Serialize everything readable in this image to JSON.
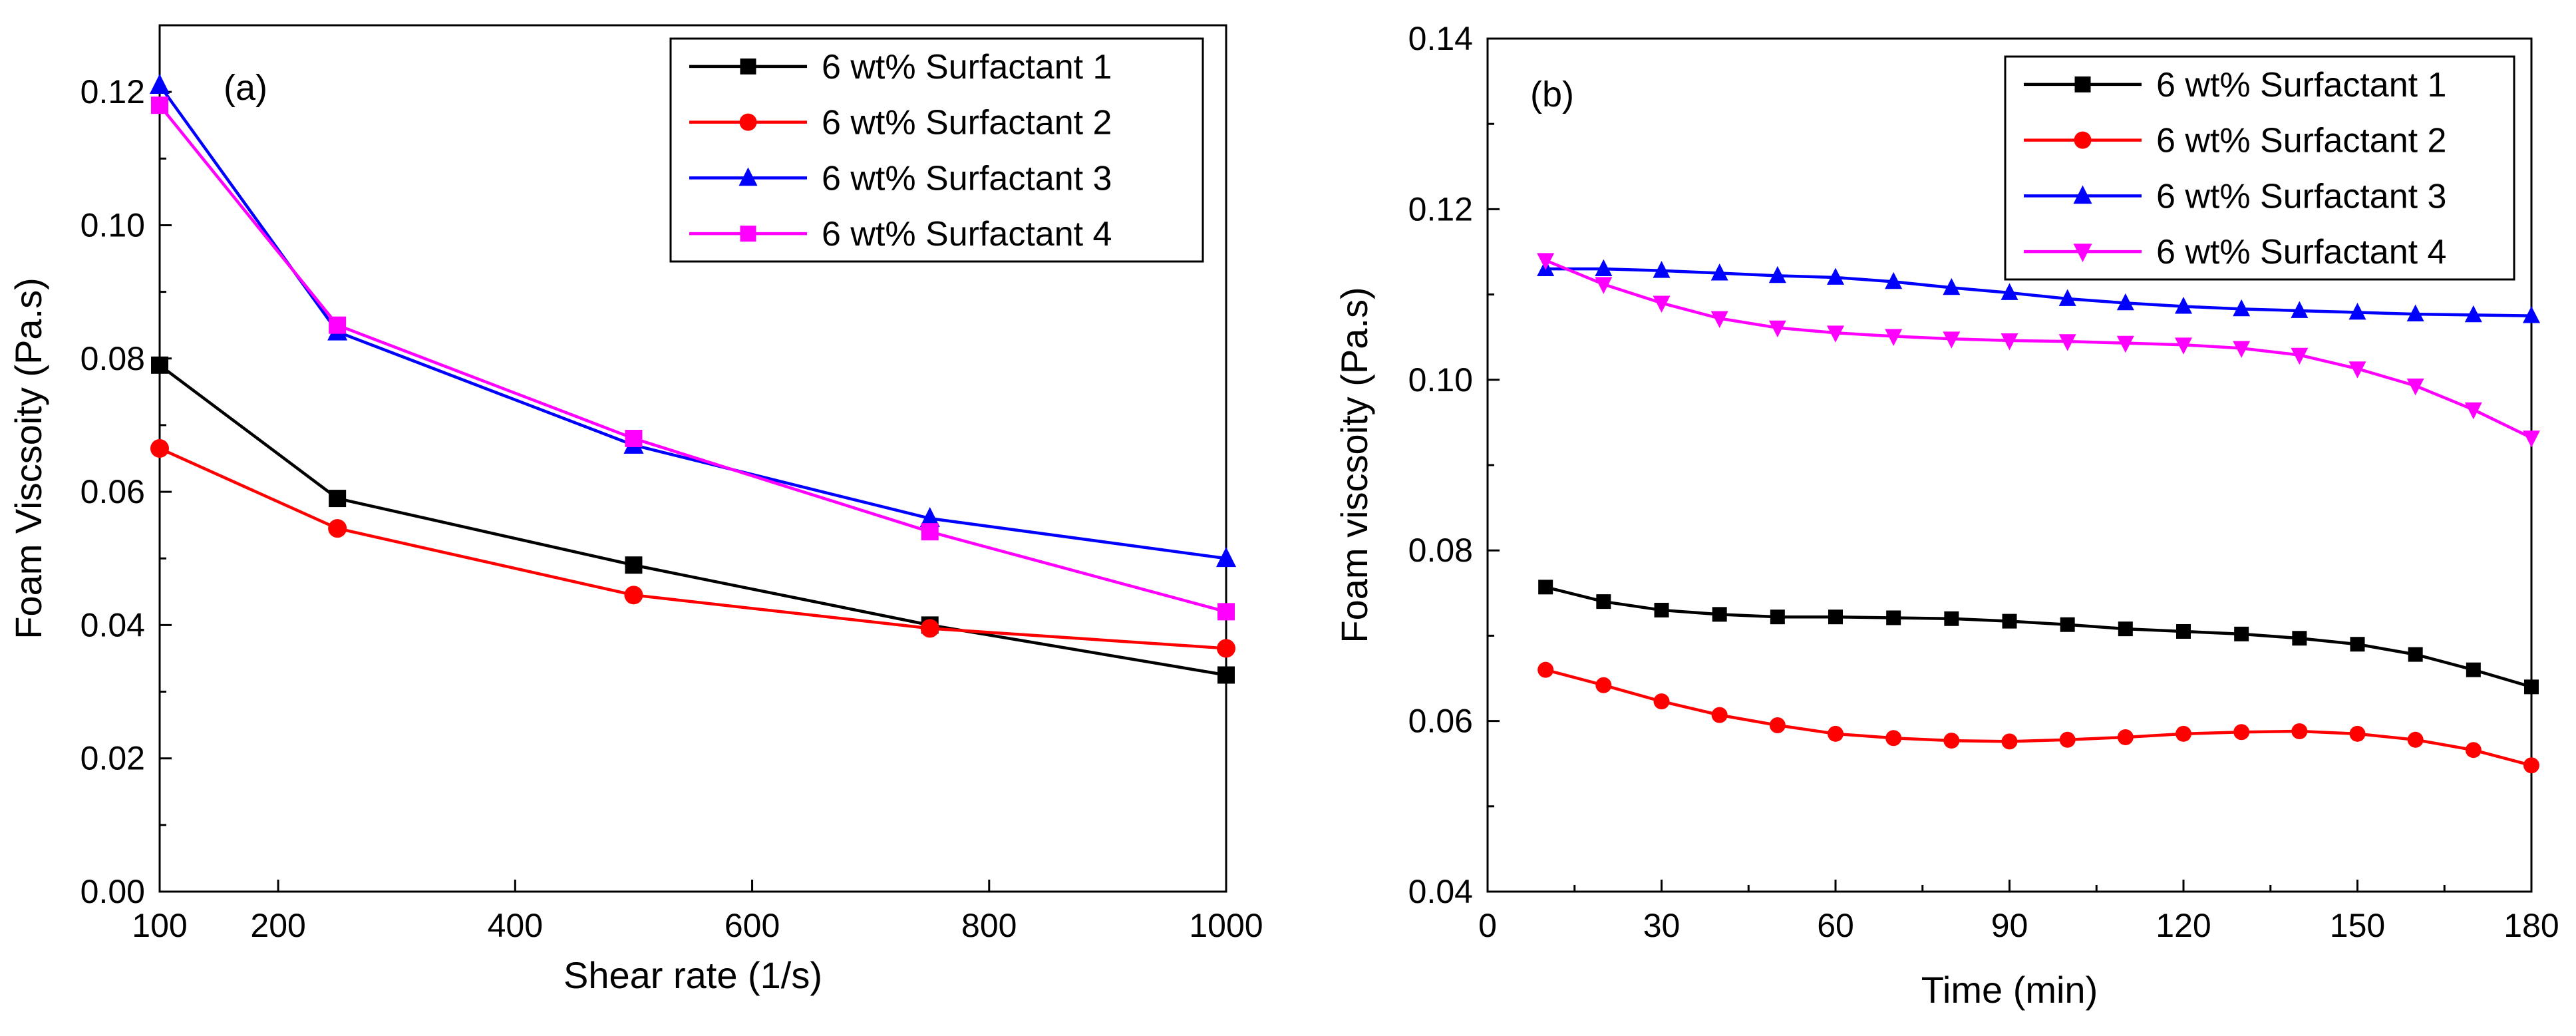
{
  "chart_data": [
    {
      "type": "line",
      "panel_label": "(a)",
      "xlabel": "Shear rate (1/s)",
      "ylabel": "Foam Viscsoity (Pa.s)",
      "xlim": [
        100,
        1000
      ],
      "ylim": [
        0.0,
        0.13
      ],
      "xticks": [
        100,
        200,
        400,
        600,
        800,
        1000
      ],
      "xtick_labels": [
        "100",
        "200",
        "400",
        "600",
        "800",
        "1000"
      ],
      "yticks": [
        0.0,
        0.02,
        0.04,
        0.06,
        0.08,
        0.1,
        0.12
      ],
      "ytick_labels": [
        "0.00",
        "0.02",
        "0.04",
        "0.06",
        "0.08",
        "0.10",
        "0.12"
      ],
      "legend_position": "top-right",
      "series": [
        {
          "name": "6 wt% Surfactant 1",
          "color": "#000000",
          "marker": "square",
          "x": [
            100,
            250,
            500,
            750,
            1000
          ],
          "y": [
            0.079,
            0.059,
            0.049,
            0.04,
            0.0325
          ]
        },
        {
          "name": "6 wt% Surfactant 2",
          "color": "#ff0000",
          "marker": "circle",
          "x": [
            100,
            250,
            500,
            750,
            1000
          ],
          "y": [
            0.0665,
            0.0545,
            0.0445,
            0.0395,
            0.0365
          ]
        },
        {
          "name": "6 wt% Surfactant 3",
          "color": "#0000ff",
          "marker": "triangle-up",
          "x": [
            100,
            250,
            500,
            750,
            1000
          ],
          "y": [
            0.121,
            0.084,
            0.067,
            0.056,
            0.05
          ]
        },
        {
          "name": "6 wt% Surfactant 4",
          "color": "#ff00ff",
          "marker": "square",
          "x": [
            100,
            250,
            500,
            750,
            1000
          ],
          "y": [
            0.118,
            0.085,
            0.068,
            0.054,
            0.042
          ]
        }
      ]
    },
    {
      "type": "line",
      "panel_label": "(b)",
      "xlabel": "Time (min)",
      "ylabel": "Foam viscsoity (Pa.s)",
      "xlim": [
        0,
        180
      ],
      "ylim": [
        0.04,
        0.14
      ],
      "xticks": [
        0,
        30,
        60,
        90,
        120,
        150,
        180
      ],
      "xtick_labels": [
        "0",
        "30",
        "60",
        "90",
        "120",
        "150",
        "180"
      ],
      "yticks": [
        0.04,
        0.06,
        0.08,
        0.1,
        0.12,
        0.14
      ],
      "ytick_labels": [
        "0.04",
        "0.06",
        "0.08",
        "0.10",
        "0.12",
        "0.14"
      ],
      "legend_position": "top-right",
      "series": [
        {
          "name": "6 wt% Surfactant 1",
          "color": "#000000",
          "marker": "square",
          "x": [
            10,
            20,
            30,
            40,
            50,
            60,
            70,
            80,
            90,
            100,
            110,
            120,
            130,
            140,
            150,
            160,
            170,
            180
          ],
          "y": [
            0.0757,
            0.074,
            0.073,
            0.0725,
            0.0722,
            0.0722,
            0.0721,
            0.072,
            0.0717,
            0.0713,
            0.0708,
            0.0705,
            0.0702,
            0.0697,
            0.069,
            0.0678,
            0.066,
            0.064
          ]
        },
        {
          "name": "6 wt% Surfactant 2",
          "color": "#ff0000",
          "marker": "circle",
          "x": [
            10,
            20,
            30,
            40,
            50,
            60,
            70,
            80,
            90,
            100,
            110,
            120,
            130,
            140,
            150,
            160,
            170,
            180
          ],
          "y": [
            0.066,
            0.0642,
            0.0623,
            0.0607,
            0.0595,
            0.0585,
            0.058,
            0.0577,
            0.0576,
            0.0578,
            0.0581,
            0.0585,
            0.0587,
            0.0588,
            0.0585,
            0.0578,
            0.0566,
            0.0548
          ]
        },
        {
          "name": "6 wt% Surfactant 3",
          "color": "#0000ff",
          "marker": "triangle-up",
          "x": [
            10,
            20,
            30,
            40,
            50,
            60,
            70,
            80,
            90,
            100,
            110,
            120,
            130,
            140,
            150,
            160,
            170,
            180
          ],
          "y": [
            0.113,
            0.113,
            0.1128,
            0.1125,
            0.1122,
            0.112,
            0.1115,
            0.1108,
            0.1102,
            0.1095,
            0.109,
            0.1086,
            0.1083,
            0.1081,
            0.1079,
            0.1077,
            0.1076,
            0.1075
          ]
        },
        {
          "name": "6 wt% Surfactant 4",
          "color": "#ff00ff",
          "marker": "triangle-down",
          "x": [
            10,
            20,
            30,
            40,
            50,
            60,
            70,
            80,
            90,
            100,
            110,
            120,
            130,
            140,
            150,
            160,
            170,
            180
          ],
          "y": [
            0.114,
            0.1112,
            0.109,
            0.1072,
            0.1061,
            0.1055,
            0.1051,
            0.1048,
            0.1046,
            0.1045,
            0.1043,
            0.1041,
            0.1037,
            0.1029,
            0.1013,
            0.0993,
            0.0965,
            0.0932
          ]
        }
      ]
    }
  ]
}
